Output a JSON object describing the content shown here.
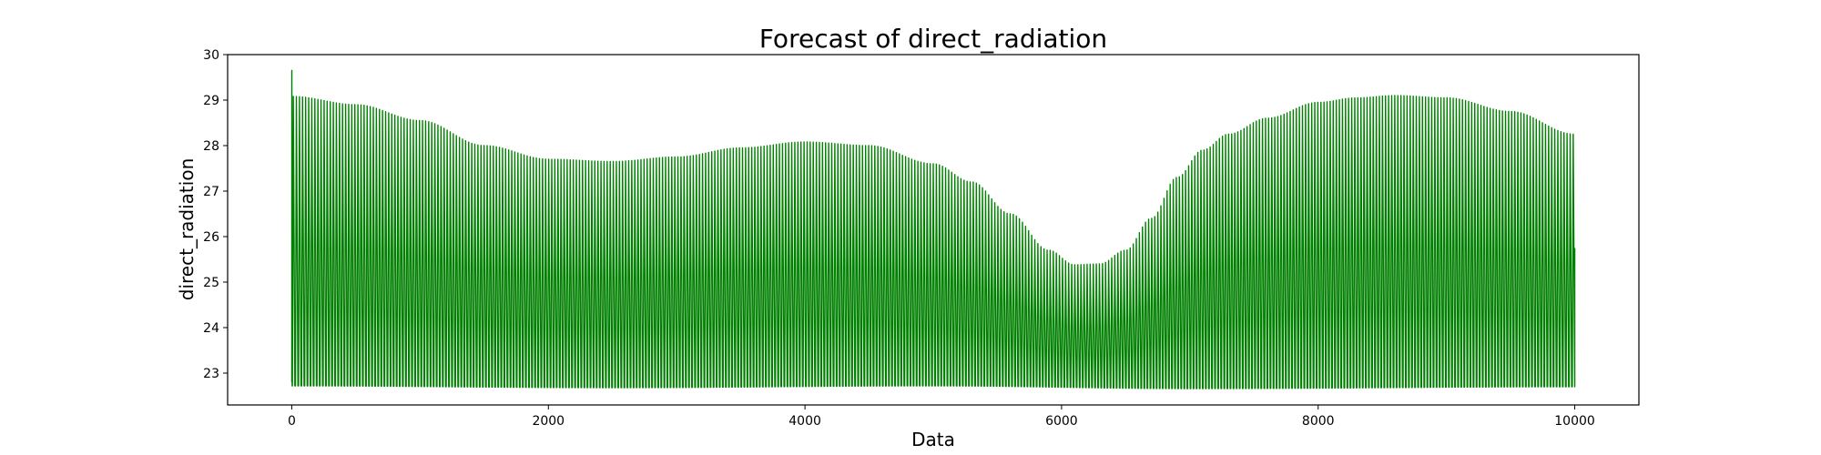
{
  "chart_data": {
    "type": "line",
    "title": "Forecast of direct_radiation",
    "xlabel": "Data",
    "ylabel": "direct_radiation",
    "xlim": [
      -500,
      10500
    ],
    "ylim": [
      22.3,
      30
    ],
    "xticks": [
      0,
      2000,
      4000,
      6000,
      8000,
      10000
    ],
    "yticks": [
      23,
      24,
      25,
      26,
      27,
      28,
      29,
      30
    ],
    "grid": false,
    "legend": "none",
    "color": "#008000",
    "series": [
      {
        "x_range": [
          0,
          10000
        ],
        "pattern": "daily oscillation between lower and upper envelope",
        "cycles": 417,
        "initial_spike": 29.65,
        "final_value": 25.75,
        "upper_envelope": {
          "x": [
            0,
            500,
            1000,
            1500,
            2000,
            2500,
            3000,
            3500,
            4000,
            4500,
            5000,
            5300,
            5600,
            5900,
            6100,
            6300,
            6500,
            6700,
            6900,
            7100,
            7300,
            7600,
            8000,
            8300,
            8600,
            9000,
            9500,
            10000
          ],
          "y": [
            29.08,
            28.9,
            28.55,
            28.0,
            27.7,
            27.65,
            27.75,
            27.95,
            28.08,
            28.0,
            27.6,
            27.2,
            26.5,
            25.7,
            25.38,
            25.4,
            25.7,
            26.4,
            27.3,
            27.9,
            28.25,
            28.6,
            28.95,
            29.05,
            29.1,
            29.05,
            28.75,
            28.25
          ]
        },
        "lower_envelope": {
          "x": [
            0,
            2500,
            5000,
            7000,
            10000
          ],
          "y": [
            22.72,
            22.68,
            22.72,
            22.66,
            22.7
          ]
        }
      }
    ]
  }
}
